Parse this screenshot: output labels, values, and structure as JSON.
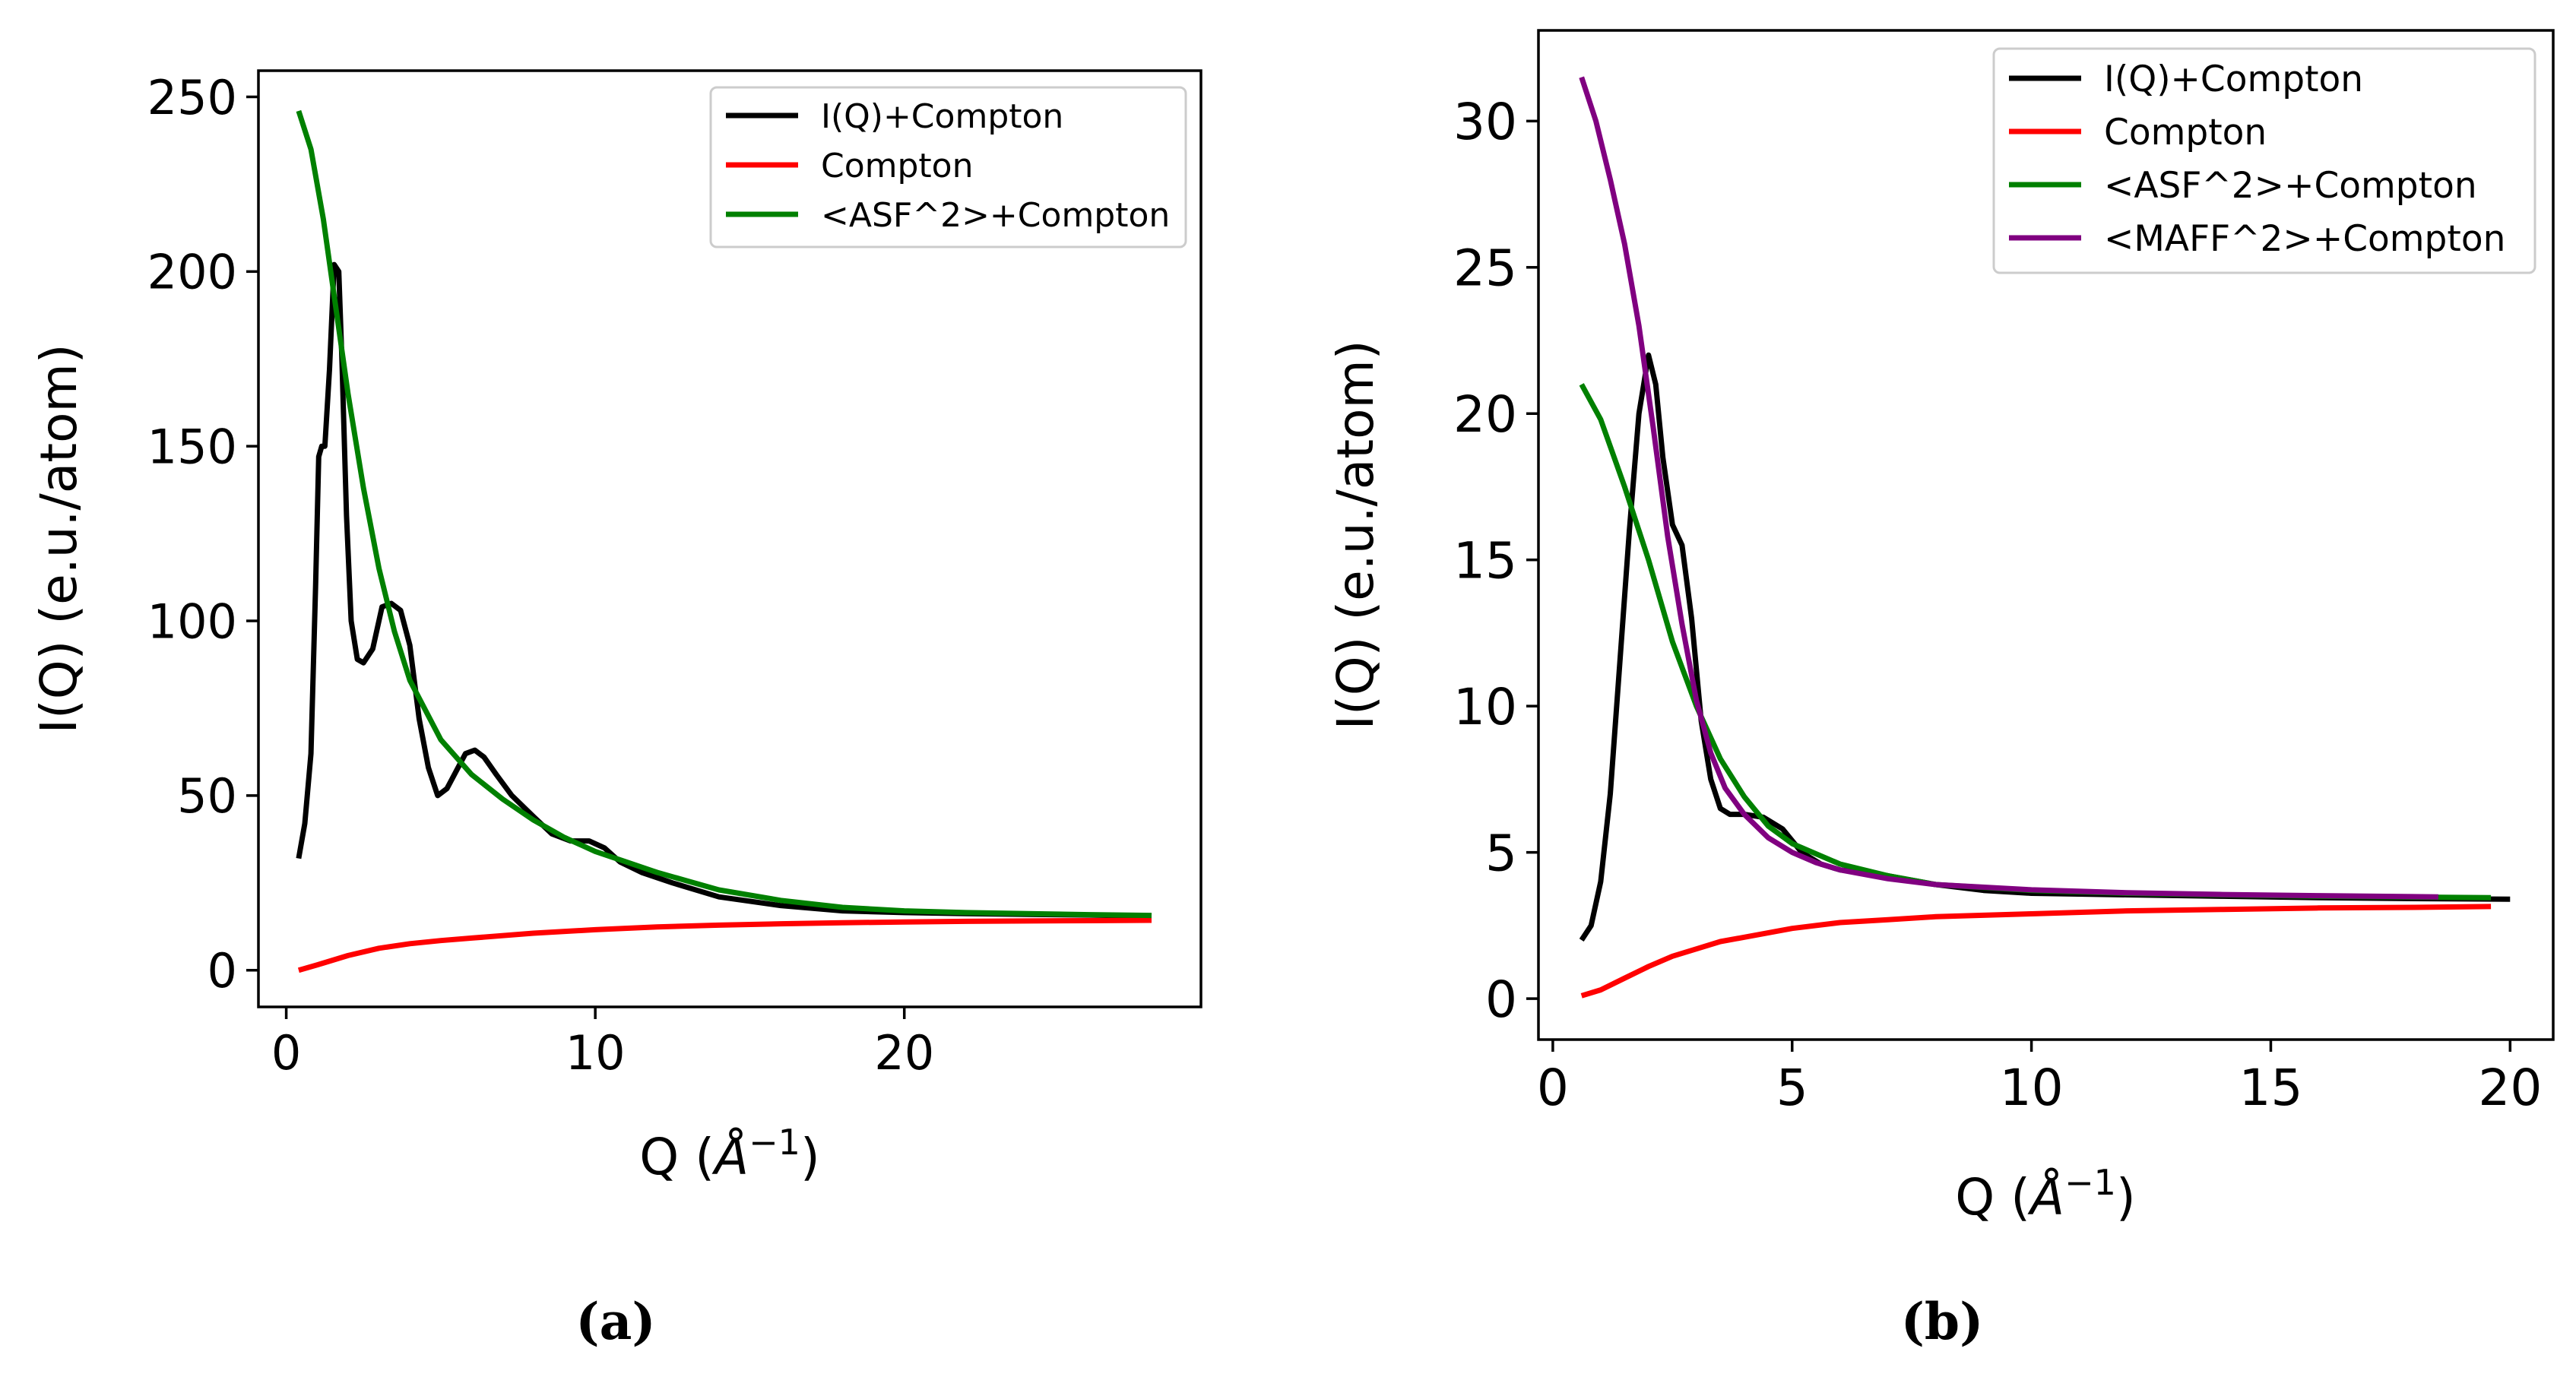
{
  "chart_data": [
    {
      "type": "line",
      "panel_label": "(a)",
      "title": "",
      "xlabel": "Q (",
      "xlabel_unit": "Å",
      "xlabel_exp": "−1",
      "xlabel_close": ")",
      "ylabel": "I(Q) (e.u./atom)",
      "xlim": [
        -0.9,
        29.6
      ],
      "ylim": [
        -10.5,
        257.5
      ],
      "xticks": [
        0,
        10,
        20
      ],
      "yticks": [
        0,
        50,
        100,
        150,
        200,
        250
      ],
      "legend_position": "top-right",
      "grid": false,
      "series": [
        {
          "name": "I(Q)+Compton",
          "color": "#000000",
          "x": [
            0.4,
            0.6,
            0.8,
            0.95,
            1.05,
            1.15,
            1.25,
            1.4,
            1.55,
            1.7,
            1.8,
            1.95,
            2.1,
            2.3,
            2.5,
            2.8,
            3.1,
            3.4,
            3.7,
            4.0,
            4.3,
            4.6,
            4.9,
            5.2,
            5.5,
            5.8,
            6.1,
            6.4,
            6.8,
            7.3,
            8.0,
            8.6,
            9.2,
            9.8,
            10.3,
            10.8,
            11.5,
            12.5,
            14.0,
            16.0,
            18.0,
            20.0,
            22.0,
            24.0,
            26.0,
            28.0
          ],
          "y": [
            32,
            42,
            62,
            110,
            147,
            150,
            150,
            172,
            202,
            200,
            175,
            130,
            100,
            89,
            88,
            92,
            104,
            105,
            103,
            93,
            72,
            58,
            50,
            52,
            57,
            62,
            63,
            61,
            56,
            50,
            44,
            39,
            37,
            37,
            35,
            31,
            28,
            25,
            21,
            18.5,
            17,
            16.5,
            16.2,
            16,
            15.8,
            15.5
          ]
        },
        {
          "name": "Compton",
          "color": "#ff0000",
          "x": [
            0.4,
            1,
            2,
            3,
            4,
            5,
            6,
            8,
            10,
            12,
            14,
            16,
            18,
            20,
            22,
            24,
            26,
            28
          ],
          "y": [
            0,
            1.5,
            4.2,
            6.3,
            7.6,
            8.5,
            9.2,
            10.6,
            11.6,
            12.4,
            12.9,
            13.3,
            13.6,
            13.8,
            14,
            14.1,
            14.2,
            14.3
          ]
        },
        {
          "name": "<ASF^2>+Compton",
          "color": "#008000",
          "x": [
            0.4,
            0.8,
            1.2,
            1.6,
            2.0,
            2.5,
            3.0,
            3.5,
            4.0,
            5.0,
            6.0,
            7.0,
            8.0,
            9.0,
            10.0,
            11.0,
            12.0,
            13.0,
            14.0,
            16.0,
            18.0,
            20.0,
            22.0,
            24.0,
            26.0,
            28.0
          ],
          "y": [
            246,
            235,
            215,
            190,
            165,
            138,
            115,
            97,
            83,
            66,
            56,
            49,
            43,
            38,
            34,
            31,
            28,
            25.5,
            23,
            20,
            18,
            17,
            16.5,
            16.2,
            15.9,
            15.7
          ]
        }
      ]
    },
    {
      "type": "line",
      "panel_label": "(b)",
      "title": "",
      "xlabel": "Q (",
      "xlabel_unit": "Å",
      "xlabel_exp": "−1",
      "xlabel_close": ")",
      "ylabel": "I(Q) (e.u./atom)",
      "xlim": [
        -0.3,
        20.9
      ],
      "ylim": [
        -1.4,
        33.1
      ],
      "xticks": [
        0,
        5,
        10,
        15,
        20
      ],
      "yticks": [
        0,
        5,
        10,
        15,
        20,
        25,
        30
      ],
      "legend_position": "top-right",
      "grid": false,
      "series": [
        {
          "name": "I(Q)+Compton",
          "color": "#000000",
          "x": [
            0.6,
            0.8,
            1.0,
            1.2,
            1.4,
            1.6,
            1.8,
            2.0,
            2.15,
            2.3,
            2.5,
            2.7,
            2.9,
            3.1,
            3.3,
            3.5,
            3.7,
            4.0,
            4.4,
            4.8,
            5.2,
            5.6,
            6.0,
            6.5,
            7.0,
            8.0,
            9.0,
            10.0,
            12.0,
            14.0,
            16.0,
            18.0,
            20.0
          ],
          "y": [
            2.0,
            2.5,
            4.0,
            7.0,
            11.5,
            16.0,
            20.0,
            22.0,
            21.0,
            18.5,
            16.2,
            15.5,
            13.0,
            9.5,
            7.5,
            6.5,
            6.3,
            6.3,
            6.2,
            5.8,
            5.0,
            4.6,
            4.4,
            4.3,
            4.2,
            3.9,
            3.7,
            3.6,
            3.55,
            3.5,
            3.45,
            3.42,
            3.4
          ]
        },
        {
          "name": "Compton",
          "color": "#ff0000",
          "x": [
            0.6,
            1.0,
            1.5,
            2.0,
            2.5,
            3.0,
            3.5,
            4.0,
            5.0,
            6.0,
            7.0,
            8.0,
            10.0,
            12.0,
            14.0,
            16.0,
            18.0,
            19.6
          ],
          "y": [
            0.1,
            0.3,
            0.7,
            1.1,
            1.45,
            1.7,
            1.95,
            2.1,
            2.4,
            2.6,
            2.7,
            2.8,
            2.9,
            3.0,
            3.05,
            3.1,
            3.12,
            3.15
          ]
        },
        {
          "name": "<ASF^2>+Compton",
          "color": "#008000",
          "x": [
            0.6,
            1.0,
            1.5,
            2.0,
            2.5,
            3.0,
            3.5,
            4.0,
            4.5,
            5.0,
            6.0,
            7.0,
            8.0,
            10.0,
            12.0,
            14.0,
            16.0,
            18.0,
            19.6
          ],
          "y": [
            21.0,
            19.8,
            17.5,
            15.0,
            12.2,
            10.0,
            8.2,
            6.9,
            5.9,
            5.3,
            4.6,
            4.2,
            3.9,
            3.7,
            3.6,
            3.55,
            3.5,
            3.47,
            3.45
          ]
        },
        {
          "name": "<MAFF^2>+Compton",
          "color": "#800080",
          "x": [
            0.6,
            0.9,
            1.2,
            1.5,
            1.8,
            2.1,
            2.4,
            2.7,
            3.0,
            3.3,
            3.6,
            4.0,
            4.5,
            5.0,
            5.5,
            6.0,
            7.0,
            8.0,
            10.0,
            12.0,
            14.0,
            16.0,
            18.5
          ],
          "y": [
            31.5,
            30.0,
            28.0,
            25.8,
            23.0,
            19.5,
            15.8,
            12.8,
            10.2,
            8.4,
            7.2,
            6.3,
            5.5,
            5.0,
            4.65,
            4.4,
            4.1,
            3.9,
            3.72,
            3.62,
            3.56,
            3.52,
            3.48
          ]
        }
      ]
    }
  ]
}
